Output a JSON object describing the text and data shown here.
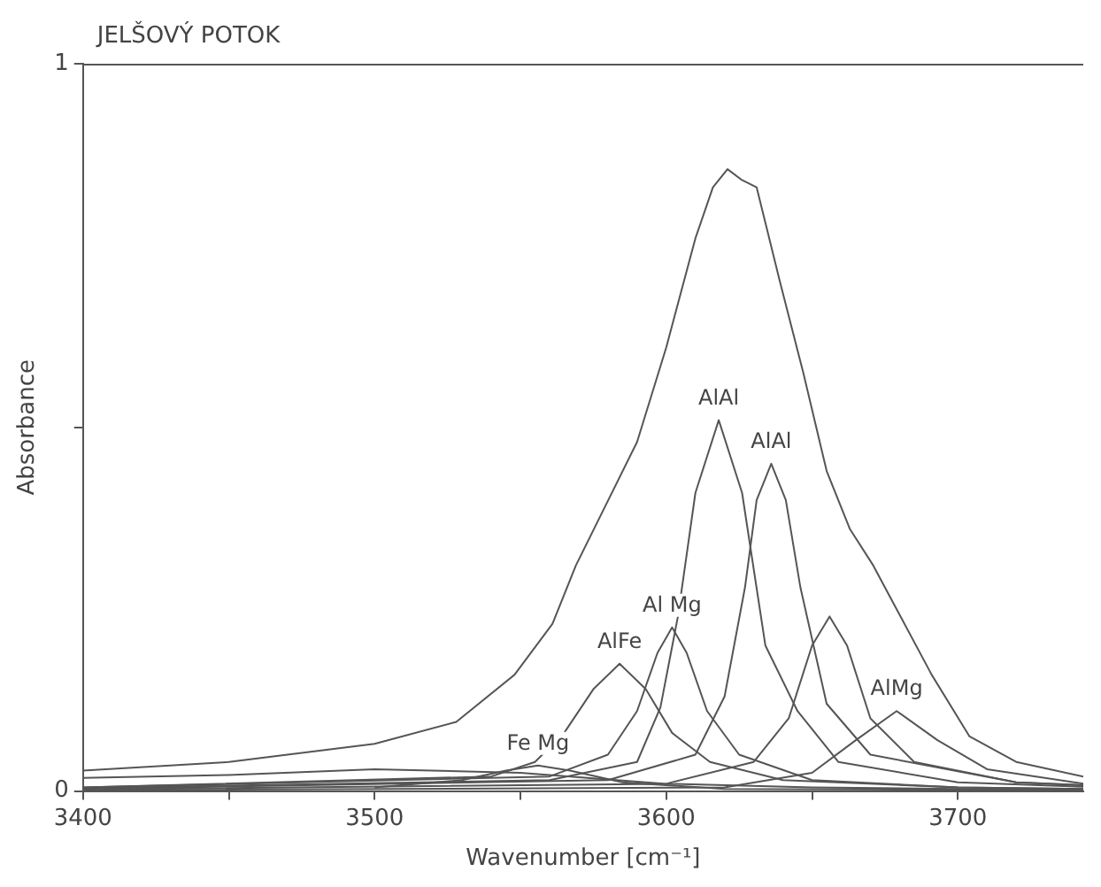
{
  "chart_data": {
    "type": "line",
    "title": "JELŠOVÝ POTOK",
    "xlabel": "Wavenumber [cm⁻¹]",
    "ylabel": "Absorbance",
    "xlim": [
      3400,
      3743
    ],
    "xticks": [
      3400,
      {
        "value": 3450,
        "label": null
      },
      3500,
      {
        "value": 3550,
        "label": null
      },
      3600,
      {
        "value": 3650,
        "label": null
      },
      3700
    ],
    "ylim": [
      0,
      1
    ],
    "yticks": [
      0,
      {
        "value": 0.5,
        "label": null
      },
      1
    ],
    "grid": false,
    "legend": false,
    "marker": "none",
    "line_style": "solid",
    "series": [
      {
        "color": "#555555",
        "x": [
          3400,
          3450,
          3500,
          3528,
          3548,
          3561,
          3569,
          3590,
          3600,
          3610,
          3616,
          3621,
          3626,
          3631,
          3639,
          3647,
          3655,
          3663,
          3671,
          3679,
          3691,
          3704,
          3720,
          3743
        ],
        "values": [
          0.028,
          0.04,
          0.065,
          0.095,
          0.16,
          0.23,
          0.31,
          0.48,
          0.61,
          0.76,
          0.83,
          0.855,
          0.84,
          0.83,
          0.7,
          0.575,
          0.44,
          0.36,
          0.31,
          0.25,
          0.16,
          0.075,
          0.04,
          0.02
        ]
      },
      {
        "color": "#555555",
        "x": [
          3400,
          3450,
          3500,
          3550,
          3600,
          3650,
          3700,
          3743
        ],
        "values": [
          0.018,
          0.022,
          0.03,
          0.025,
          0.01,
          0.005,
          0.003,
          0.002
        ]
      },
      {
        "color": "#555555",
        "x": [
          3500,
          3530,
          3545,
          3556,
          3567,
          3585,
          3620,
          3743
        ],
        "values": [
          0.005,
          0.015,
          0.028,
          0.035,
          0.028,
          0.012,
          0.003,
          0.001
        ]
      },
      {
        "color": "#555555",
        "x": [
          3400,
          3540,
          3555,
          3565,
          3575,
          3584,
          3593,
          3602,
          3615,
          3640,
          3700,
          3743
        ],
        "values": [
          0.005,
          0.02,
          0.04,
          0.08,
          0.14,
          0.175,
          0.14,
          0.08,
          0.04,
          0.015,
          0.005,
          0.003
        ]
      },
      {
        "color": "#555555",
        "x": [
          3400,
          3560,
          3580,
          3590,
          3597,
          3602,
          3607,
          3614,
          3625,
          3650,
          3700,
          3743
        ],
        "values": [
          0.005,
          0.02,
          0.05,
          0.11,
          0.19,
          0.225,
          0.19,
          0.11,
          0.05,
          0.015,
          0.005,
          0.003
        ]
      },
      {
        "color": "#555555",
        "x": [
          3400,
          3560,
          3590,
          3598,
          3604,
          3610,
          3618,
          3626,
          3634,
          3645,
          3659,
          3700,
          3743
        ],
        "values": [
          0.004,
          0.015,
          0.04,
          0.115,
          0.24,
          0.41,
          0.51,
          0.41,
          0.2,
          0.11,
          0.04,
          0.012,
          0.006
        ]
      },
      {
        "color": "#555555",
        "x": [
          3400,
          3580,
          3610,
          3620,
          3627,
          3631,
          3636,
          3641,
          3646,
          3655,
          3670,
          3720,
          3743
        ],
        "values": [
          0.003,
          0.015,
          0.05,
          0.13,
          0.28,
          0.4,
          0.45,
          0.4,
          0.28,
          0.12,
          0.05,
          0.012,
          0.008
        ]
      },
      {
        "color": "#555555",
        "x": [
          3400,
          3600,
          3630,
          3642,
          3650,
          3656,
          3662,
          3670,
          3685,
          3720,
          3743
        ],
        "values": [
          0.002,
          0.01,
          0.04,
          0.1,
          0.2,
          0.24,
          0.2,
          0.1,
          0.04,
          0.012,
          0.008
        ]
      },
      {
        "color": "#555555",
        "x": [
          3400,
          3620,
          3650,
          3665,
          3679,
          3693,
          3710,
          3743
        ],
        "values": [
          0.001,
          0.005,
          0.025,
          0.07,
          0.11,
          0.07,
          0.03,
          0.01
        ]
      }
    ],
    "annotations": [
      {
        "text": "Fe Mg",
        "x": 3556,
        "y": 0.035
      },
      {
        "text": "AlFe",
        "x": 3584,
        "y": 0.175
      },
      {
        "text": "Al Mg",
        "x": 3602,
        "y": 0.225
      },
      {
        "text": "AlAl",
        "x": 3618,
        "y": 0.51
      },
      {
        "text": "AlAl",
        "x": 3636,
        "y": 0.45
      },
      {
        "text": "AlMg",
        "x": 3679,
        "y": 0.11
      }
    ]
  }
}
